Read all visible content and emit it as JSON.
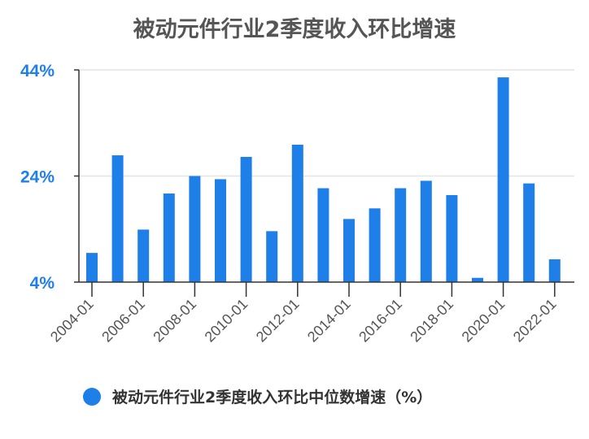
{
  "colors": {
    "bar": "#1e7fe8",
    "ytick": "#1e7fe8",
    "axis": "#333333",
    "grid": "#e4e4e4",
    "title": "#555555"
  },
  "chart_data": {
    "type": "bar",
    "title": "被动元件行业2季度收入环比增速",
    "x": [
      "2004-01",
      "2005-01",
      "2006-01",
      "2007-01",
      "2008-01",
      "2009-01",
      "2010-01",
      "2011-01",
      "2012-01",
      "2013-01",
      "2014-01",
      "2015-01",
      "2016-01",
      "2017-01",
      "2018-01",
      "2019-01",
      "2020-01",
      "2021-01",
      "2022-01"
    ],
    "xtick_labels": [
      "2004-01",
      "2006-01",
      "2008-01",
      "2010-01",
      "2012-01",
      "2014-01",
      "2016-01",
      "2018-01",
      "2020-01",
      "2022-01"
    ],
    "series": [
      {
        "name": "被动元件行业2季度收入环比中位数增速（%）",
        "values": [
          9.5,
          27.9,
          13.9,
          20.7,
          24.0,
          23.4,
          27.6,
          13.6,
          29.9,
          21.7,
          15.9,
          17.9,
          21.7,
          23.1,
          20.4,
          4.8,
          42.6,
          22.6,
          8.3
        ]
      }
    ],
    "yticks": [
      "4%",
      "24%",
      "44%"
    ],
    "ytick_values": [
      4,
      24,
      44
    ],
    "ylim": [
      4,
      44
    ],
    "grid": true,
    "legend_position": "bottom-left"
  }
}
